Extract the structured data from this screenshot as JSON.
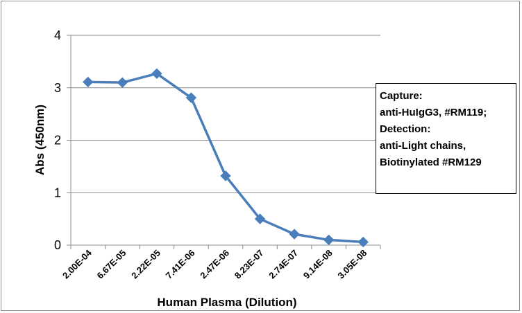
{
  "chart_data": {
    "type": "line",
    "title": "",
    "xlabel": "Human Plasma (Dilution)",
    "ylabel": "Abs (450nm)",
    "ylim": [
      0,
      4
    ],
    "yticks": [
      "0",
      "1",
      "2",
      "3",
      "4"
    ],
    "grid": true,
    "categories": [
      "2.00E-04",
      "6.67E-05",
      "2.22E-05",
      "7.41E-06",
      "2.47E-06",
      "8.23E-07",
      "2.74E-07",
      "9.14E-08",
      "3.05E-08"
    ],
    "series": [
      {
        "values": [
          3.11,
          3.1,
          3.27,
          2.81,
          1.32,
          0.5,
          0.21,
          0.1,
          0.06
        ]
      }
    ],
    "annotation": [
      "Capture:",
      "anti-HuIgG3, #RM119;",
      "Detection:",
      "anti-Light chains,",
      "Biotinylated #RM129"
    ],
    "colors": {
      "series": "#4a7ebb",
      "grid": "#8c8c8c"
    }
  }
}
